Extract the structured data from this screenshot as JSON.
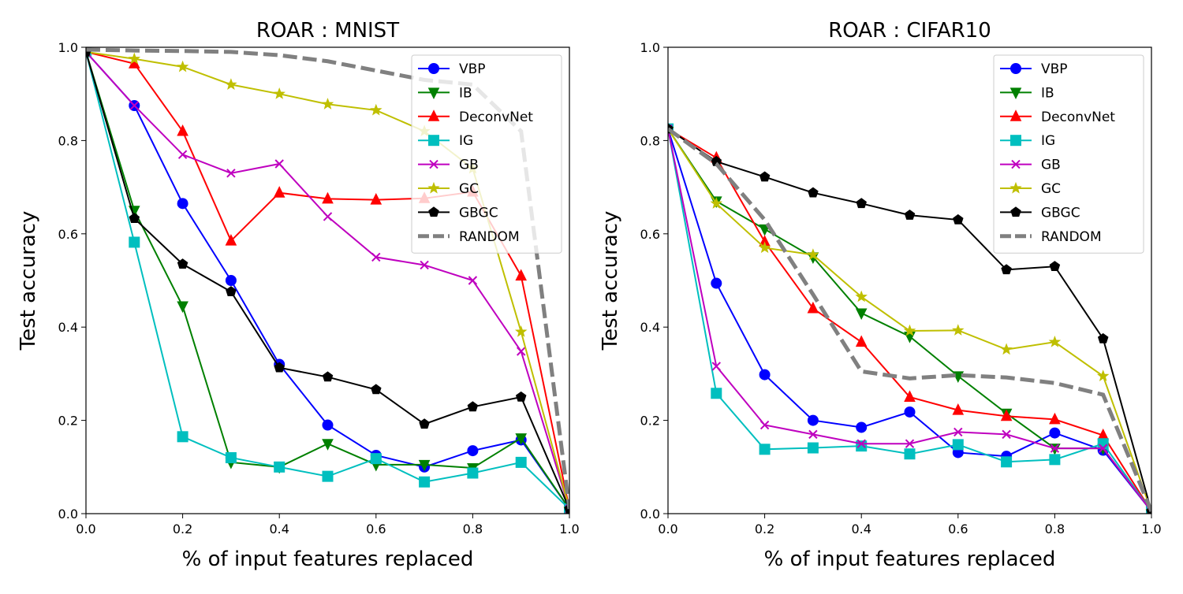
{
  "chart_data": [
    {
      "type": "line",
      "title": "ROAR : MNIST",
      "xlabel": "% of input features replaced",
      "ylabel": "Test accuracy",
      "xlim": [
        0,
        1
      ],
      "ylim": [
        0,
        1
      ],
      "xticks": [
        "0.0",
        "0.2",
        "0.4",
        "0.6",
        "0.8",
        "1.0"
      ],
      "yticks": [
        "0.0",
        "0.2",
        "0.4",
        "0.6",
        "0.8",
        "1.0"
      ],
      "legend_position": "top-right",
      "grid": false,
      "x": [
        0.0,
        0.1,
        0.2,
        0.3,
        0.4,
        0.5,
        0.6,
        0.7,
        0.8,
        0.9,
        1.0
      ],
      "series": [
        {
          "name": "VBP",
          "color": "#0000ff",
          "marker": "circle",
          "style": "solid",
          "values": [
            0.99,
            0.875,
            0.665,
            0.5,
            0.32,
            0.19,
            0.125,
            0.1,
            0.135,
            0.158,
            0.01
          ]
        },
        {
          "name": "IB",
          "color": "#008000",
          "marker": "triangle-down",
          "style": "solid",
          "values": [
            0.99,
            0.65,
            0.445,
            0.11,
            0.1,
            0.15,
            0.105,
            0.105,
            0.098,
            0.162,
            0.01
          ]
        },
        {
          "name": "DeconvNet",
          "color": "#ff0000",
          "marker": "triangle-up",
          "style": "solid",
          "values": [
            0.99,
            0.965,
            0.82,
            0.585,
            0.688,
            0.675,
            0.673,
            0.676,
            0.69,
            0.51,
            0.01
          ]
        },
        {
          "name": "IG",
          "color": "#00bfbf",
          "marker": "square",
          "style": "solid",
          "values": [
            0.99,
            0.582,
            0.165,
            0.12,
            0.1,
            0.08,
            0.118,
            0.068,
            0.087,
            0.11,
            0.01
          ]
        },
        {
          "name": "GB",
          "color": "#bf00bf",
          "marker": "x",
          "style": "solid",
          "values": [
            0.99,
            0.875,
            0.77,
            0.73,
            0.75,
            0.637,
            0.55,
            0.533,
            0.5,
            0.348,
            0.01
          ]
        },
        {
          "name": "GC",
          "color": "#bfbf00",
          "marker": "star",
          "style": "solid",
          "values": [
            0.99,
            0.975,
            0.958,
            0.92,
            0.9,
            0.878,
            0.865,
            0.82,
            0.74,
            0.39,
            0.01
          ]
        },
        {
          "name": "GBGC",
          "color": "#000000",
          "marker": "pentagon",
          "style": "solid",
          "values": [
            0.99,
            0.633,
            0.535,
            0.476,
            0.313,
            0.293,
            0.266,
            0.192,
            0.229,
            0.25,
            0.01
          ]
        },
        {
          "name": "RANDOM",
          "color": "#808080",
          "marker": "none",
          "style": "dashed",
          "values": [
            0.995,
            0.993,
            0.992,
            0.99,
            0.983,
            0.97,
            0.95,
            0.93,
            0.92,
            0.82,
            0.01
          ]
        }
      ]
    },
    {
      "type": "line",
      "title": "ROAR : CIFAR10",
      "xlabel": "% of input features replaced",
      "ylabel": "Test accuracy",
      "xlim": [
        0,
        1
      ],
      "ylim": [
        0,
        1
      ],
      "xticks": [
        "0.0",
        "0.2",
        "0.4",
        "0.6",
        "0.8",
        "1.0"
      ],
      "yticks": [
        "0.0",
        "0.2",
        "0.4",
        "0.6",
        "0.8",
        "1.0"
      ],
      "legend_position": "top-right",
      "grid": false,
      "x": [
        0.0,
        0.1,
        0.2,
        0.3,
        0.4,
        0.5,
        0.6,
        0.7,
        0.8,
        0.9,
        1.0
      ],
      "series": [
        {
          "name": "VBP",
          "color": "#0000ff",
          "marker": "circle",
          "style": "solid",
          "values": [
            0.825,
            0.494,
            0.298,
            0.2,
            0.185,
            0.218,
            0.131,
            0.123,
            0.173,
            0.136,
            0.005
          ]
        },
        {
          "name": "IB",
          "color": "#008000",
          "marker": "triangle-down",
          "style": "solid",
          "values": [
            0.825,
            0.67,
            0.61,
            0.55,
            0.43,
            0.38,
            0.295,
            0.215,
            0.14,
            0.14,
            0.005
          ]
        },
        {
          "name": "DeconvNet",
          "color": "#ff0000",
          "marker": "triangle-up",
          "style": "solid",
          "values": [
            0.825,
            0.763,
            0.583,
            0.44,
            0.368,
            0.25,
            0.222,
            0.209,
            0.202,
            0.168,
            0.005
          ]
        },
        {
          "name": "IG",
          "color": "#00bfbf",
          "marker": "square",
          "style": "solid",
          "values": [
            0.825,
            0.258,
            0.138,
            0.141,
            0.145,
            0.128,
            0.148,
            0.111,
            0.116,
            0.15,
            0.005
          ]
        },
        {
          "name": "GB",
          "color": "#bf00bf",
          "marker": "x",
          "style": "solid",
          "values": [
            0.825,
            0.316,
            0.19,
            0.17,
            0.15,
            0.15,
            0.175,
            0.17,
            0.14,
            0.14,
            0.005
          ]
        },
        {
          "name": "GC",
          "color": "#bfbf00",
          "marker": "star",
          "style": "solid",
          "values": [
            0.825,
            0.665,
            0.57,
            0.555,
            0.465,
            0.392,
            0.393,
            0.352,
            0.368,
            0.295,
            0.005
          ]
        },
        {
          "name": "GBGC",
          "color": "#000000",
          "marker": "pentagon",
          "style": "solid",
          "values": [
            0.825,
            0.755,
            0.722,
            0.688,
            0.665,
            0.64,
            0.63,
            0.523,
            0.53,
            0.375,
            0.005
          ]
        },
        {
          "name": "RANDOM",
          "color": "#808080",
          "marker": "none",
          "style": "dashed",
          "values": [
            0.825,
            0.75,
            0.63,
            0.47,
            0.305,
            0.29,
            0.297,
            0.292,
            0.28,
            0.255,
            0.005
          ]
        }
      ]
    }
  ]
}
